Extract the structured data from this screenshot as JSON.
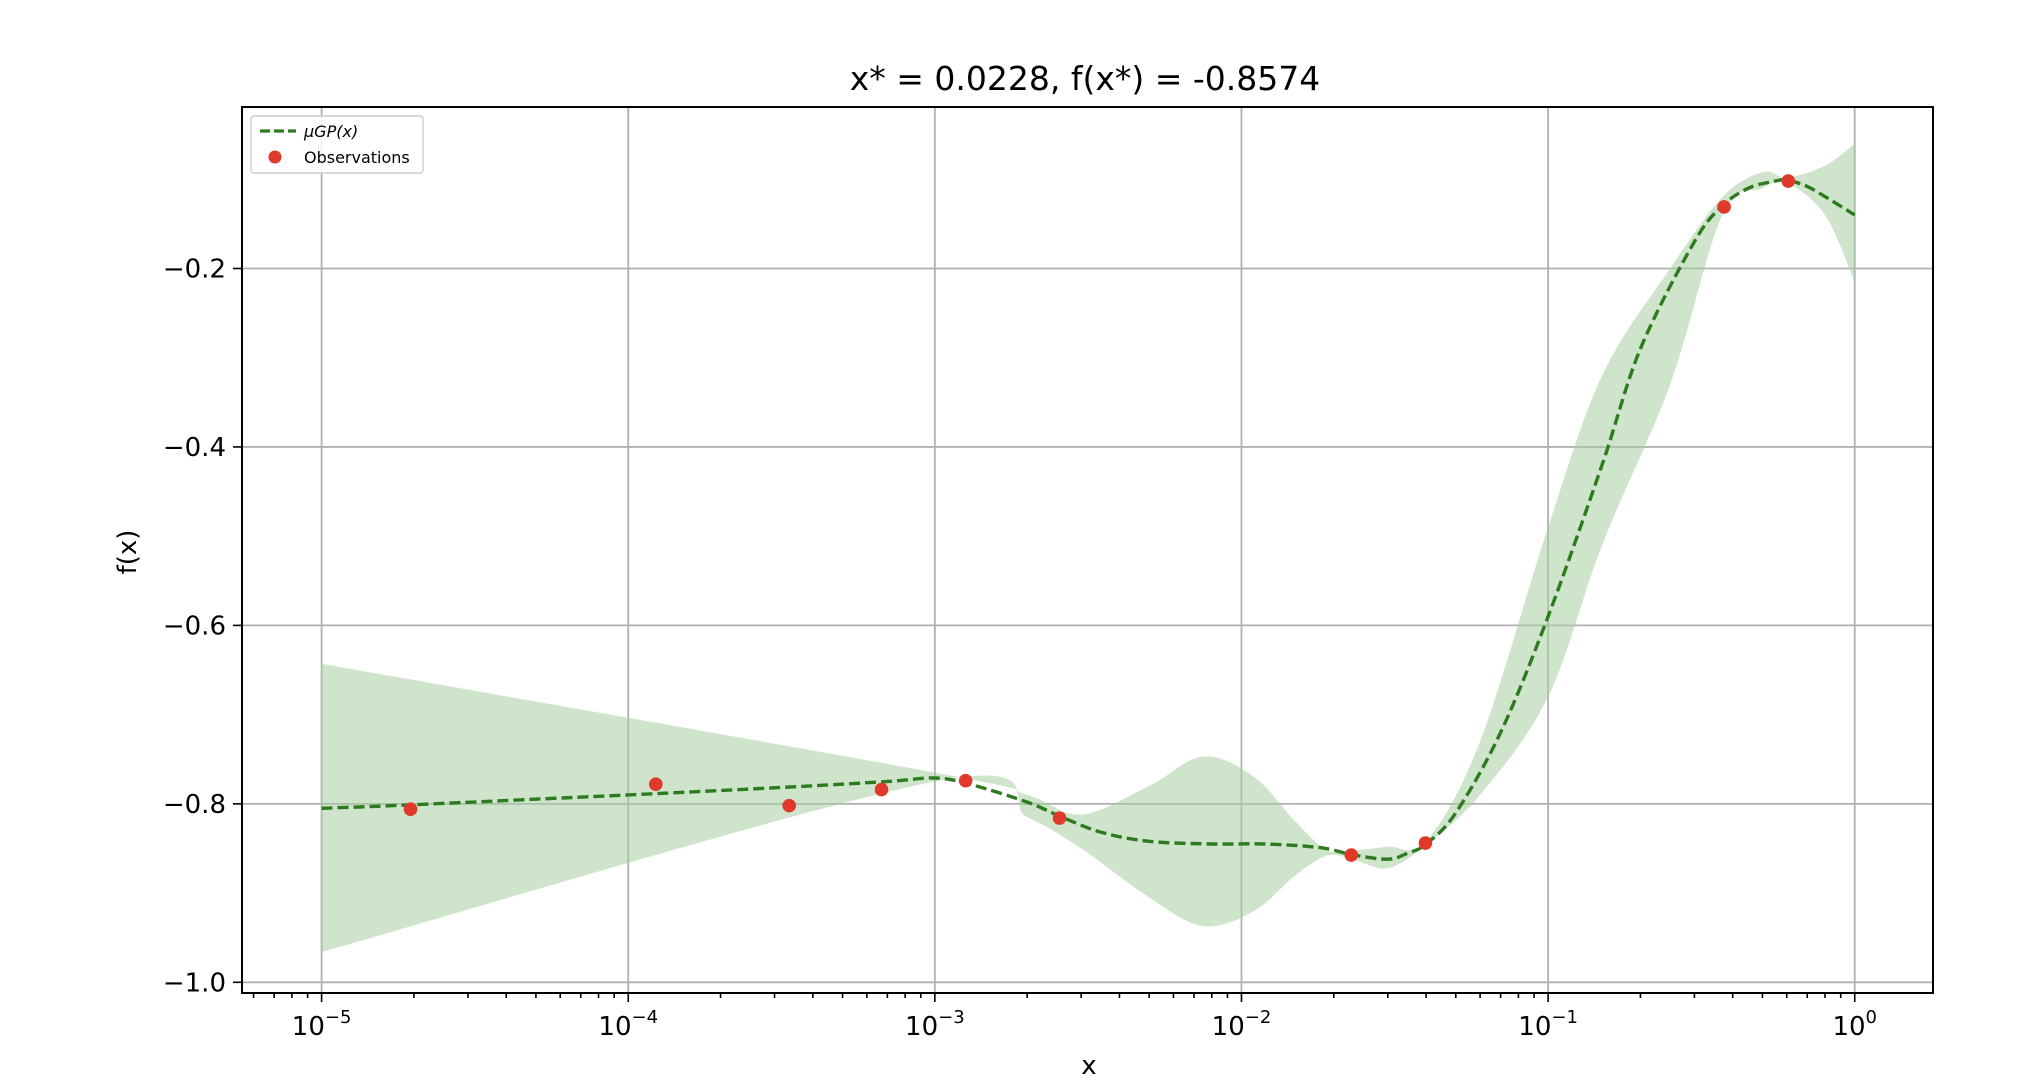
{
  "chart_data": {
    "type": "line",
    "title": "x* = 0.0228, f(x*) = -0.8574",
    "xlabel": "x",
    "ylabel": "f(x)",
    "xscale": "log",
    "xlim": [
      5.5e-06,
      1.8
    ],
    "ylim": [
      -1.012,
      -0.019
    ],
    "grid": true,
    "legend_position": "top-left",
    "colors": {
      "mean": "#2d7a1f",
      "band": "#a8d0a0",
      "observations": "#e0392b"
    },
    "x_ticks": [
      {
        "value": 1e-05,
        "base": "10",
        "exp": "−5"
      },
      {
        "value": 0.0001,
        "base": "10",
        "exp": "−4"
      },
      {
        "value": 0.001,
        "base": "10",
        "exp": "−3"
      },
      {
        "value": 0.01,
        "base": "10",
        "exp": "−2"
      },
      {
        "value": 0.1,
        "base": "10",
        "exp": "−1"
      },
      {
        "value": 1,
        "base": "10",
        "exp": "0"
      }
    ],
    "y_ticks": [
      {
        "value": -0.2,
        "label": "−0.2"
      },
      {
        "value": -0.4,
        "label": "−0.4"
      },
      {
        "value": -0.6,
        "label": "−0.6"
      },
      {
        "value": -0.8,
        "label": "−0.8"
      },
      {
        "value": -1.0,
        "label": "−1.0"
      }
    ],
    "series": [
      {
        "name": "μGP(x)",
        "kind": "mean",
        "x": [
          1e-05,
          2e-05,
          0.0001,
          0.0003,
          0.0007,
          0.001,
          0.0013,
          0.002,
          0.0026,
          0.0035,
          0.005,
          0.008,
          0.012,
          0.018,
          0.023,
          0.03,
          0.035,
          0.04,
          0.05,
          0.07,
          0.1,
          0.15,
          0.2,
          0.3,
          0.37,
          0.45,
          0.55,
          0.6,
          0.7,
          0.85,
          1.0
        ],
        "y": [
          -0.805,
          -0.801,
          -0.79,
          -0.782,
          -0.775,
          -0.771,
          -0.778,
          -0.798,
          -0.815,
          -0.832,
          -0.842,
          -0.845,
          -0.845,
          -0.849,
          -0.857,
          -0.862,
          -0.855,
          -0.845,
          -0.81,
          -0.72,
          -0.59,
          -0.42,
          -0.29,
          -0.17,
          -0.13,
          -0.11,
          -0.102,
          -0.101,
          -0.108,
          -0.125,
          -0.14
        ]
      },
      {
        "name": "",
        "kind": "band",
        "x": [
          1e-05,
          0.001,
          0.002,
          0.003,
          0.005,
          0.0075,
          0.011,
          0.015,
          0.019,
          0.023,
          0.03,
          0.04,
          0.06,
          0.1,
          0.15,
          0.25,
          0.37,
          0.5,
          0.6,
          0.8,
          1.0
        ],
        "lower": [
          -0.966,
          -0.775,
          -0.815,
          -0.85,
          -0.905,
          -0.937,
          -0.92,
          -0.88,
          -0.858,
          -0.862,
          -0.872,
          -0.846,
          -0.79,
          -0.68,
          -0.51,
          -0.33,
          -0.14,
          -0.11,
          -0.104,
          -0.14,
          -0.215
        ],
        "upper": [
          -0.643,
          -0.765,
          -0.79,
          -0.812,
          -0.78,
          -0.747,
          -0.77,
          -0.82,
          -0.852,
          -0.852,
          -0.848,
          -0.842,
          -0.73,
          -0.49,
          -0.32,
          -0.2,
          -0.12,
          -0.092,
          -0.098,
          -0.085,
          -0.06
        ]
      },
      {
        "name": "Observations",
        "kind": "points",
        "x": [
          1.95e-05,
          0.000123,
          0.000335,
          0.00067,
          0.00126,
          0.00255,
          0.0228,
          0.0398,
          0.375,
          0.607
        ],
        "y": [
          -0.806,
          -0.778,
          -0.802,
          -0.784,
          -0.774,
          -0.816,
          -0.8574,
          -0.844,
          -0.131,
          -0.102
        ]
      }
    ]
  }
}
